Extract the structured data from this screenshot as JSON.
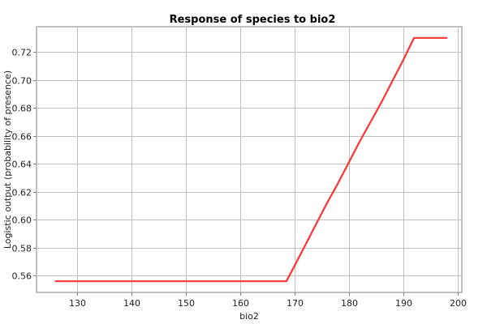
{
  "chart_data": {
    "type": "line",
    "title": "Response of species to bio2",
    "xlabel": "bio2",
    "ylabel": "Logistic output (probability of presence)",
    "xlim": [
      122.5,
      200.8
    ],
    "ylim": [
      0.548,
      0.738
    ],
    "xticks": [
      130,
      140,
      150,
      160,
      170,
      180,
      190,
      200
    ],
    "yticks": [
      0.56,
      0.58,
      0.6,
      0.62,
      0.64,
      0.66,
      0.68,
      0.7,
      0.72
    ],
    "xtick_labels": [
      "130",
      "140",
      "150",
      "160",
      "170",
      "180",
      "190",
      "200"
    ],
    "ytick_labels": [
      "0.56",
      "0.58",
      "0.60",
      "0.62",
      "0.64",
      "0.66",
      "0.68",
      "0.70",
      "0.72"
    ],
    "grid": true,
    "line_color": "#ff3333",
    "series": [
      {
        "x": [
          126,
          140,
          150,
          160,
          168.5,
          170,
          172,
          174,
          176,
          178,
          180,
          182,
          184,
          186,
          188,
          190,
          192,
          195,
          198
        ],
        "y": [
          0.556,
          0.556,
          0.556,
          0.556,
          0.556,
          0.567,
          0.582,
          0.597,
          0.612,
          0.626,
          0.641,
          0.656,
          0.67,
          0.684,
          0.699,
          0.714,
          0.73,
          0.73,
          0.73
        ]
      }
    ]
  }
}
